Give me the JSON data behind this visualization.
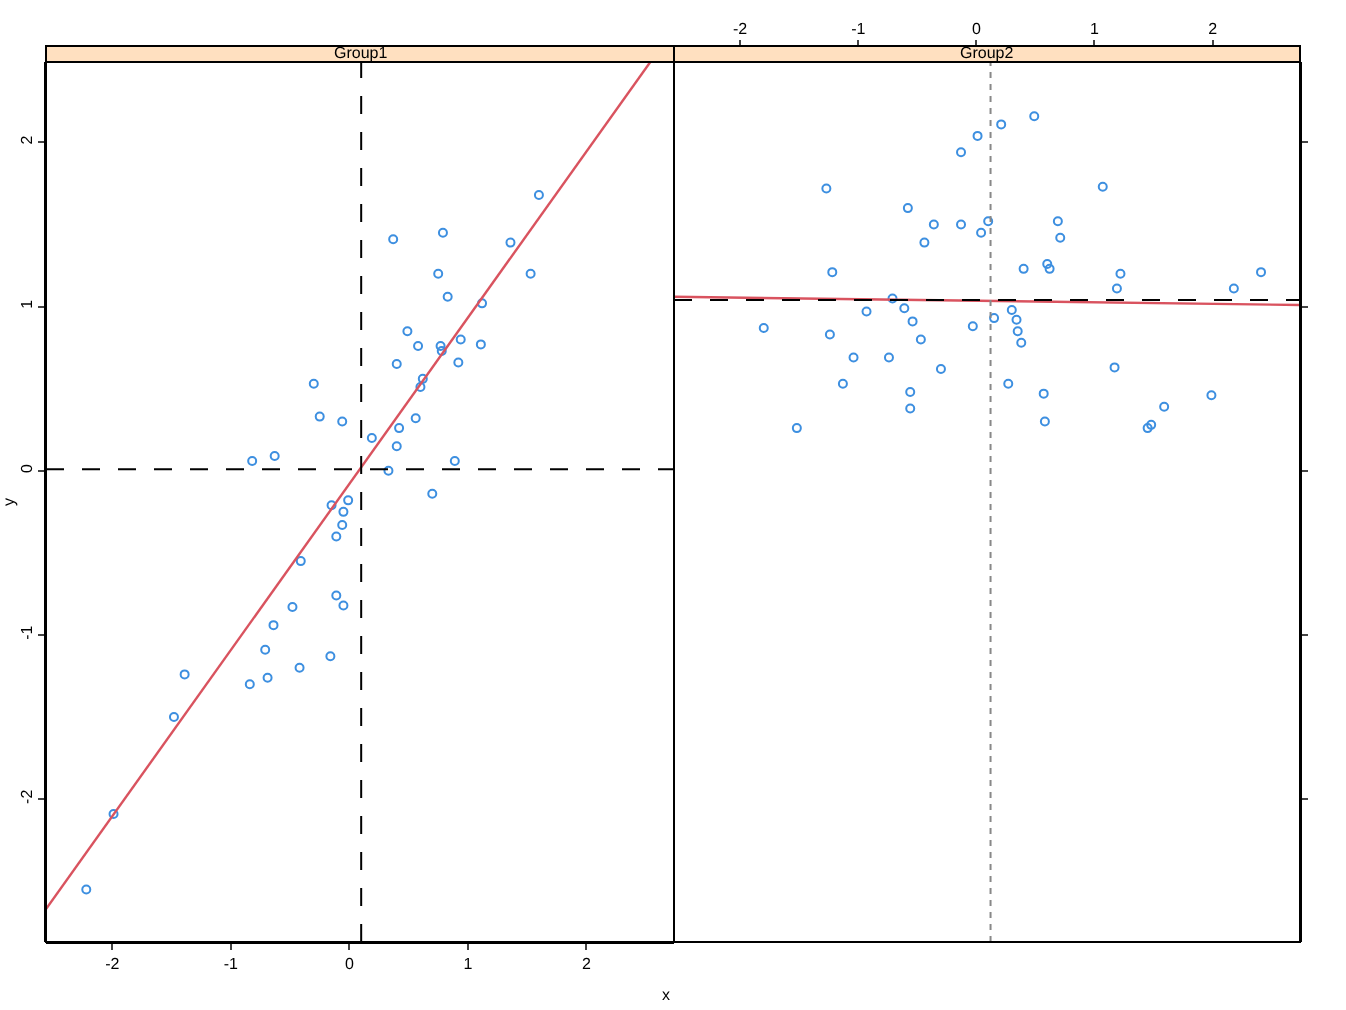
{
  "chart_data": [
    {
      "type": "scatter",
      "title": "Group1",
      "xlabel": "x",
      "ylabel": "y",
      "marker": "circle",
      "grid": false,
      "xlim": [
        -2.56,
        2.74
      ],
      "xticks": [
        -2,
        -1,
        0,
        1,
        2
      ],
      "ylim": [
        -2.87,
        2.49
      ],
      "yticks": [
        -2,
        -1,
        0,
        1,
        2
      ],
      "series": [
        {
          "color": "#3d8fe0",
          "x": [
            1.6,
            0.37,
            0.79,
            1.36,
            0.75,
            1.53,
            0.83,
            1.12,
            0.49,
            0.58,
            0.77,
            0.78,
            0.94,
            1.11,
            0.4,
            0.92,
            -0.3,
            0.62,
            0.6,
            -0.25,
            -0.06,
            0.56,
            0.42,
            0.19,
            0.4,
            -0.82,
            -0.63,
            0.89,
            0.33,
            0.7,
            -0.15,
            -0.01,
            -0.05,
            -0.06,
            -0.11,
            -0.41,
            -0.11,
            -0.05,
            -0.48,
            -0.64,
            -0.71,
            -0.16,
            -0.42,
            -1.39,
            -0.69,
            -0.84,
            -1.48,
            -1.99,
            -2.22
          ],
          "values": [
            1.68,
            1.41,
            1.45,
            1.39,
            1.2,
            1.2,
            1.06,
            1.02,
            0.85,
            0.76,
            0.76,
            0.73,
            0.8,
            0.77,
            0.65,
            0.66,
            0.53,
            0.56,
            0.51,
            0.33,
            0.3,
            0.32,
            0.26,
            0.2,
            0.15,
            0.06,
            0.09,
            0.06,
            0.0,
            -0.14,
            -0.21,
            -0.18,
            -0.25,
            -0.33,
            -0.4,
            -0.55,
            -0.76,
            -0.82,
            -0.83,
            -0.94,
            -1.09,
            -1.13,
            -1.2,
            -1.24,
            -1.26,
            -1.3,
            -1.5,
            -2.09,
            -2.55
          ]
        },
        {
          "type": "line",
          "color": "#d9535f",
          "x": [
            -2.56,
            2.54
          ],
          "values": [
            -2.67,
            2.49
          ],
          "marker": "none",
          "line_style": "solid"
        }
      ],
      "ref_lines": [
        {
          "axis": "x",
          "value": 0.1,
          "color": "#000000",
          "line_style": "dashed"
        },
        {
          "axis": "y",
          "value": 0.01,
          "color": "#000000",
          "line_style": "dashed"
        }
      ]
    },
    {
      "type": "scatter",
      "title": "Group2",
      "marker": "circle",
      "grid": false,
      "tick_labels": "x",
      "xlim": [
        -2.56,
        2.74
      ],
      "xticks": [
        -2,
        -1,
        0,
        1,
        2
      ],
      "ylim": [
        -2.87,
        2.49
      ],
      "yticks": [
        {
          "value": -2,
          "label": null
        },
        {
          "value": -1,
          "label": null
        },
        {
          "value": 0,
          "label": null
        },
        {
          "value": 1,
          "label": null
        },
        {
          "value": 2,
          "label": null
        }
      ],
      "series": [
        {
          "color": "#3d8fe0",
          "x": [
            0.49,
            0.21,
            0.01,
            -0.13,
            -1.27,
            1.07,
            -0.58,
            0.69,
            -0.36,
            -0.13,
            0.1,
            0.04,
            0.71,
            -0.44,
            0.4,
            0.6,
            0.62,
            -1.22,
            1.22,
            2.41,
            1.19,
            2.18,
            -0.71,
            -0.61,
            -0.93,
            0.3,
            0.15,
            0.34,
            -1.8,
            -0.54,
            -0.03,
            -1.24,
            0.35,
            -0.47,
            0.38,
            -1.04,
            -0.74,
            1.17,
            -0.3,
            -1.13,
            0.27,
            -0.56,
            0.57,
            1.99,
            1.59,
            -0.56,
            0.58,
            1.48,
            1.45,
            -1.52
          ],
          "values": [
            2.16,
            2.11,
            2.04,
            1.94,
            1.72,
            1.73,
            1.6,
            1.52,
            1.5,
            1.5,
            1.52,
            1.45,
            1.42,
            1.39,
            1.23,
            1.26,
            1.23,
            1.21,
            1.2,
            1.21,
            1.11,
            1.11,
            1.05,
            0.99,
            0.97,
            0.98,
            0.93,
            0.92,
            0.87,
            0.91,
            0.88,
            0.83,
            0.85,
            0.8,
            0.78,
            0.69,
            0.69,
            0.63,
            0.62,
            0.53,
            0.53,
            0.48,
            0.47,
            0.46,
            0.39,
            0.38,
            0.3,
            0.28,
            0.26,
            0.26
          ]
        },
        {
          "type": "line",
          "color": "#d9535f",
          "x": [
            -2.56,
            2.74
          ],
          "values": [
            1.06,
            1.01
          ],
          "marker": "none",
          "line_style": "solid"
        }
      ],
      "ref_lines": [
        {
          "axis": "x",
          "value": 0.12,
          "color": "#888888",
          "line_style": "dotted"
        },
        {
          "axis": "y",
          "value": 1.04,
          "color": "#000000",
          "line_style": "dashed"
        }
      ]
    }
  ]
}
